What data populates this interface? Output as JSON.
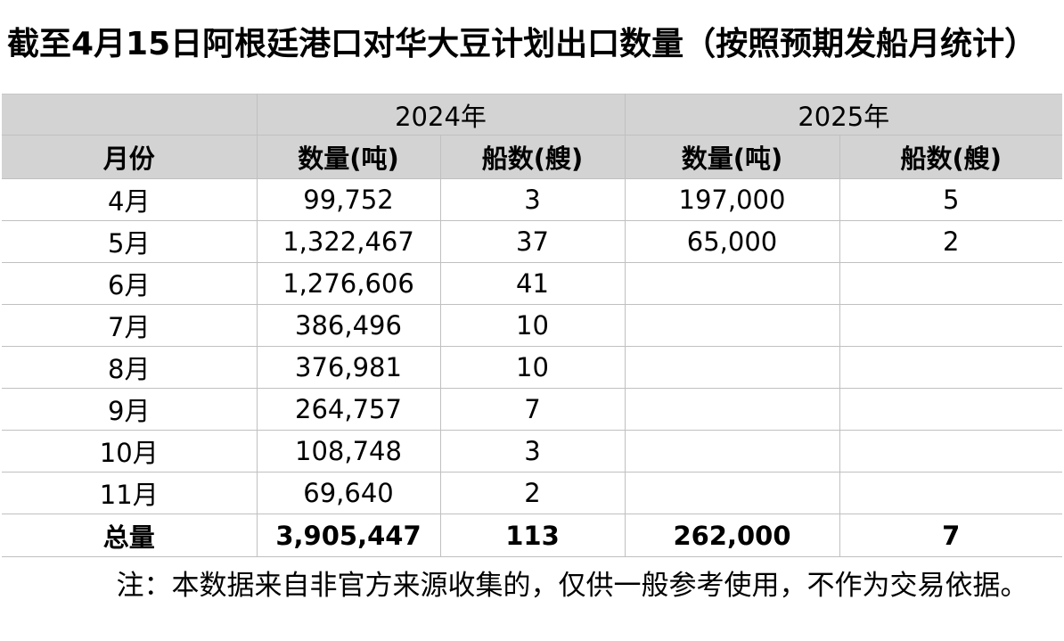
{
  "title": "截至4月15日阿根廷港口对华大豆计划出口数量（按照预期发船月统计）",
  "table": {
    "year_headers": [
      "2024年",
      "2025年"
    ],
    "col_headers": [
      "月份",
      "数量(吨)",
      "船数(艘)",
      "数量(吨)",
      "船数(艘)"
    ],
    "rows": [
      {
        "month": "4月",
        "qty_2024": "99,752",
        "ships_2024": "3",
        "qty_2025": "197,000",
        "ships_2025": "5"
      },
      {
        "month": "5月",
        "qty_2024": "1,322,467",
        "ships_2024": "37",
        "qty_2025": "65,000",
        "ships_2025": "2"
      },
      {
        "month": "6月",
        "qty_2024": "1,276,606",
        "ships_2024": "41",
        "qty_2025": "",
        "ships_2025": ""
      },
      {
        "month": "7月",
        "qty_2024": "386,496",
        "ships_2024": "10",
        "qty_2025": "",
        "ships_2025": ""
      },
      {
        "month": "8月",
        "qty_2024": "376,981",
        "ships_2024": "10",
        "qty_2025": "",
        "ships_2025": ""
      },
      {
        "month": "9月",
        "qty_2024": "264,757",
        "ships_2024": "7",
        "qty_2025": "",
        "ships_2025": ""
      },
      {
        "month": "10月",
        "qty_2024": "108,748",
        "ships_2024": "3",
        "qty_2025": "",
        "ships_2025": ""
      },
      {
        "month": "11月",
        "qty_2024": "69,640",
        "ships_2024": "2",
        "qty_2025": "",
        "ships_2025": ""
      }
    ],
    "totals": {
      "month": "总量",
      "qty_2024": "3,905,447",
      "ships_2024": "113",
      "qty_2025": "262,000",
      "ships_2025": "7"
    }
  },
  "note": "注：本数据来自非官方来源收集的，仅供一般参考使用，不作为交易依据。",
  "colors": {
    "header_bg": "#d3d3d3",
    "grid_border": "#c0c0c0",
    "text": "#000000",
    "background": "#ffffff"
  }
}
